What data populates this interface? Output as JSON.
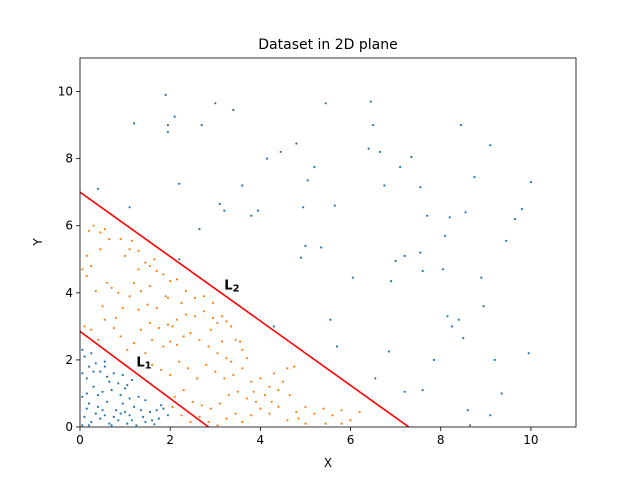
{
  "chart_data": {
    "type": "scatter",
    "title": "Dataset in 2D plane",
    "xlabel": "X",
    "ylabel": "Y",
    "xlim": [
      0,
      11
    ],
    "ylim": [
      0,
      11
    ],
    "xticks": [
      0,
      2,
      4,
      6,
      8,
      10
    ],
    "yticks": [
      0,
      2,
      4,
      6,
      8,
      10
    ],
    "grid": false,
    "colors": {
      "class_a": "#1f77b4",
      "class_b": "#ff7f0e",
      "line": "#ff0000"
    },
    "lines": [
      {
        "label": "L",
        "subscript": "1",
        "intercept": 2.85,
        "slope": -1.0,
        "label_at": [
          1.25,
          1.8
        ]
      },
      {
        "label": "L",
        "subscript": "2",
        "intercept": 7.0,
        "slope": -0.96,
        "label_at": [
          3.2,
          4.1
        ]
      }
    ],
    "series": [
      {
        "points": [
          [
            0.05,
            2.3
          ],
          [
            0.1,
            2.1
          ],
          [
            0.2,
            1.8
          ],
          [
            0.25,
            2.2
          ],
          [
            0.35,
            1.9
          ],
          [
            0.45,
            1.65
          ],
          [
            0.55,
            1.8
          ],
          [
            0.6,
            1.5
          ],
          [
            0.75,
            1.6
          ],
          [
            0.85,
            1.3
          ],
          [
            0.95,
            1.55
          ],
          [
            1.05,
            1.25
          ],
          [
            1.15,
            1.4
          ],
          [
            0.15,
            1.45
          ],
          [
            0.3,
            1.2
          ],
          [
            0.5,
            1.05
          ],
          [
            0.7,
            1.1
          ],
          [
            0.9,
            0.95
          ],
          [
            1.1,
            0.85
          ],
          [
            1.3,
            0.9
          ],
          [
            1.45,
            0.8
          ],
          [
            0.05,
            0.9
          ],
          [
            0.2,
            0.7
          ],
          [
            0.4,
            0.6
          ],
          [
            0.6,
            0.75
          ],
          [
            0.8,
            0.5
          ],
          [
            1.0,
            0.45
          ],
          [
            1.2,
            0.6
          ],
          [
            1.4,
            0.3
          ],
          [
            1.55,
            0.45
          ],
          [
            1.7,
            0.5
          ],
          [
            1.85,
            0.55
          ],
          [
            1.95,
            0.35
          ],
          [
            0.1,
            0.3
          ],
          [
            0.25,
            0.15
          ],
          [
            0.45,
            0.25
          ],
          [
            0.65,
            0.1
          ],
          [
            0.85,
            0.2
          ],
          [
            1.05,
            0.1
          ],
          [
            1.25,
            0.05
          ],
          [
            1.45,
            0.15
          ],
          [
            1.65,
            0.08
          ],
          [
            0.05,
            0.05
          ],
          [
            0.15,
            0.55
          ],
          [
            0.35,
            0.4
          ],
          [
            0.55,
            0.35
          ],
          [
            0.75,
            0.3
          ],
          [
            0.95,
            0.7
          ],
          [
            1.15,
            0.2
          ],
          [
            1.35,
            0.5
          ],
          [
            1.6,
            0.2
          ],
          [
            1.75,
            0.25
          ],
          [
            0.3,
            1.65
          ],
          [
            0.65,
            1.35
          ],
          [
            0.4,
            0.95
          ],
          [
            0.05,
            1.6
          ],
          [
            0.15,
            1.0
          ],
          [
            1.0,
            1.15
          ],
          [
            1.1,
            0.35
          ],
          [
            0.2,
            0.05
          ],
          [
            1.8,
            0.65
          ],
          [
            0.5,
            0.5
          ],
          [
            0.7,
            0.05
          ],
          [
            0.9,
            0.4
          ],
          [
            0.55,
            1.95
          ],
          [
            1.2,
            9.05
          ],
          [
            1.9,
            9.9
          ],
          [
            1.95,
            9.0
          ],
          [
            2.1,
            9.25
          ],
          [
            1.95,
            8.8
          ],
          [
            2.7,
            9.0
          ],
          [
            3.0,
            9.65
          ],
          [
            3.4,
            9.45
          ],
          [
            2.2,
            7.25
          ],
          [
            1.1,
            6.55
          ],
          [
            0.4,
            7.1
          ],
          [
            3.1,
            6.65
          ],
          [
            3.2,
            6.45
          ],
          [
            2.65,
            5.9
          ],
          [
            2.2,
            5.0
          ],
          [
            3.6,
            7.2
          ],
          [
            3.8,
            6.3
          ],
          [
            3.95,
            6.45
          ],
          [
            4.15,
            8.0
          ],
          [
            4.45,
            8.2
          ],
          [
            4.8,
            8.45
          ],
          [
            5.05,
            7.35
          ],
          [
            5.2,
            7.75
          ],
          [
            4.95,
            6.55
          ],
          [
            5.0,
            5.4
          ],
          [
            4.9,
            5.05
          ],
          [
            5.35,
            5.35
          ],
          [
            5.65,
            6.6
          ],
          [
            5.45,
            9.65
          ],
          [
            6.05,
            4.45
          ],
          [
            5.55,
            3.2
          ],
          [
            5.7,
            2.4
          ],
          [
            6.45,
            9.7
          ],
          [
            6.5,
            9.0
          ],
          [
            6.65,
            8.2
          ],
          [
            6.4,
            8.3
          ],
          [
            6.75,
            7.2
          ],
          [
            7.1,
            7.75
          ],
          [
            7.35,
            8.05
          ],
          [
            7.55,
            7.15
          ],
          [
            7.7,
            6.3
          ],
          [
            7.2,
            5.1
          ],
          [
            7.55,
            5.2
          ],
          [
            7.6,
            4.65
          ],
          [
            6.9,
            4.35
          ],
          [
            7.0,
            4.95
          ],
          [
            8.05,
            4.7
          ],
          [
            8.1,
            5.7
          ],
          [
            8.2,
            6.25
          ],
          [
            8.55,
            6.4
          ],
          [
            8.4,
            3.2
          ],
          [
            8.15,
            3.3
          ],
          [
            8.25,
            3.0
          ],
          [
            8.5,
            2.65
          ],
          [
            8.45,
            9.0
          ],
          [
            8.75,
            7.45
          ],
          [
            8.9,
            4.45
          ],
          [
            8.95,
            3.6
          ],
          [
            9.1,
            8.4
          ],
          [
            9.2,
            2.0
          ],
          [
            9.35,
            1.0
          ],
          [
            9.45,
            5.55
          ],
          [
            9.65,
            6.2
          ],
          [
            9.95,
            2.2
          ],
          [
            10.0,
            7.3
          ],
          [
            9.1,
            0.35
          ],
          [
            8.6,
            0.5
          ],
          [
            8.65,
            0.05
          ],
          [
            7.85,
            2.0
          ],
          [
            7.6,
            1.1
          ],
          [
            7.2,
            1.05
          ],
          [
            6.85,
            2.25
          ],
          [
            6.55,
            1.45
          ],
          [
            4.3,
            3.0
          ],
          [
            9.8,
            6.5
          ]
        ]
      },
      {
        "points": [
          [
            0.05,
            4.7
          ],
          [
            0.15,
            4.5
          ],
          [
            0.2,
            5.85
          ],
          [
            0.3,
            6.0
          ],
          [
            0.45,
            5.8
          ],
          [
            0.55,
            5.9
          ],
          [
            0.65,
            5.6
          ],
          [
            0.25,
            4.8
          ],
          [
            0.35,
            4.05
          ],
          [
            0.5,
            3.6
          ],
          [
            0.7,
            4.15
          ],
          [
            0.85,
            4.0
          ],
          [
            0.95,
            3.55
          ],
          [
            1.1,
            3.9
          ],
          [
            1.2,
            4.3
          ],
          [
            1.3,
            4.7
          ],
          [
            1.0,
            5.1
          ],
          [
            0.9,
            5.6
          ],
          [
            1.1,
            5.3
          ],
          [
            1.3,
            5.25
          ],
          [
            1.45,
            4.9
          ],
          [
            1.55,
            4.8
          ],
          [
            1.7,
            4.65
          ],
          [
            1.85,
            4.55
          ],
          [
            2.0,
            4.35
          ],
          [
            2.15,
            4.4
          ],
          [
            1.9,
            3.9
          ],
          [
            1.7,
            3.55
          ],
          [
            1.5,
            3.65
          ],
          [
            1.3,
            3.5
          ],
          [
            0.1,
            3.0
          ],
          [
            0.25,
            2.9
          ],
          [
            0.4,
            2.6
          ],
          [
            0.55,
            3.2
          ],
          [
            0.75,
            2.95
          ],
          [
            0.9,
            2.7
          ],
          [
            1.05,
            2.3
          ],
          [
            1.2,
            2.5
          ],
          [
            1.35,
            2.9
          ],
          [
            1.55,
            3.1
          ],
          [
            1.75,
            2.95
          ],
          [
            1.95,
            3.05
          ],
          [
            2.15,
            3.2
          ],
          [
            2.35,
            3.35
          ],
          [
            2.55,
            3.3
          ],
          [
            2.75,
            3.45
          ],
          [
            2.95,
            3.25
          ],
          [
            3.05,
            3.1
          ],
          [
            3.15,
            3.3
          ],
          [
            3.25,
            3.15
          ],
          [
            3.35,
            3.0
          ],
          [
            3.45,
            2.6
          ],
          [
            3.55,
            2.55
          ],
          [
            3.6,
            2.3
          ],
          [
            3.25,
            2.05
          ],
          [
            3.05,
            2.2
          ],
          [
            2.85,
            2.4
          ],
          [
            2.65,
            2.6
          ],
          [
            2.45,
            2.8
          ],
          [
            2.3,
            2.7
          ],
          [
            2.15,
            2.45
          ],
          [
            2.0,
            2.55
          ],
          [
            1.85,
            2.4
          ],
          [
            1.6,
            2.6
          ],
          [
            1.45,
            2.2
          ],
          [
            1.3,
            2.05
          ],
          [
            1.6,
            1.85
          ],
          [
            1.8,
            1.7
          ],
          [
            2.0,
            1.55
          ],
          [
            2.2,
            1.95
          ],
          [
            2.4,
            1.75
          ],
          [
            2.6,
            1.45
          ],
          [
            2.8,
            1.85
          ],
          [
            3.0,
            1.65
          ],
          [
            3.2,
            1.45
          ],
          [
            3.4,
            1.55
          ],
          [
            3.6,
            1.75
          ],
          [
            3.8,
            1.35
          ],
          [
            4.0,
            1.45
          ],
          [
            4.2,
            1.2
          ],
          [
            4.4,
            1.1
          ],
          [
            4.6,
            1.75
          ],
          [
            4.75,
            1.8
          ],
          [
            4.5,
            1.35
          ],
          [
            4.3,
            1.6
          ],
          [
            4.1,
            0.95
          ],
          [
            3.9,
            0.75
          ],
          [
            3.7,
            0.85
          ],
          [
            3.5,
            1.05
          ],
          [
            3.3,
            0.95
          ],
          [
            3.1,
            0.7
          ],
          [
            2.9,
            0.55
          ],
          [
            2.7,
            0.65
          ],
          [
            2.5,
            0.75
          ],
          [
            2.3,
            1.1
          ],
          [
            2.1,
            0.9
          ],
          [
            2.05,
            0.6
          ],
          [
            2.25,
            0.35
          ],
          [
            2.45,
            0.15
          ],
          [
            2.65,
            0.3
          ],
          [
            2.85,
            0.15
          ],
          [
            3.05,
            0.05
          ],
          [
            3.25,
            0.25
          ],
          [
            3.45,
            0.4
          ],
          [
            3.6,
            0.15
          ],
          [
            3.8,
            0.35
          ],
          [
            4.0,
            0.55
          ],
          [
            4.2,
            0.4
          ],
          [
            4.4,
            0.6
          ],
          [
            4.6,
            0.2
          ],
          [
            4.8,
            0.45
          ],
          [
            5.0,
            0.6
          ],
          [
            5.2,
            0.4
          ],
          [
            5.4,
            0.55
          ],
          [
            5.6,
            0.35
          ],
          [
            5.8,
            0.5
          ],
          [
            6.0,
            0.2
          ],
          [
            6.2,
            0.45
          ],
          [
            5.45,
            0.1
          ],
          [
            5.0,
            0.1
          ],
          [
            4.85,
            0.25
          ],
          [
            4.25,
            0.75
          ],
          [
            3.85,
            1.05
          ],
          [
            3.35,
            1.95
          ],
          [
            3.15,
            2.55
          ],
          [
            2.9,
            2.9
          ],
          [
            2.55,
            3.85
          ],
          [
            2.35,
            4.05
          ],
          [
            2.75,
            3.9
          ],
          [
            1.65,
            5.0
          ],
          [
            0.15,
            5.1
          ],
          [
            0.6,
            4.3
          ],
          [
            0.8,
            3.25
          ],
          [
            1.95,
            3.85
          ],
          [
            2.25,
            3.7
          ],
          [
            2.05,
            3.0
          ],
          [
            1.55,
            4.2
          ],
          [
            0.45,
            5.3
          ],
          [
            1.15,
            5.55
          ],
          [
            5.8,
            0.1
          ],
          [
            4.65,
            0.95
          ],
          [
            3.7,
            2.05
          ],
          [
            2.95,
            3.7
          ],
          [
            1.35,
            4.05
          ]
        ]
      }
    ]
  }
}
